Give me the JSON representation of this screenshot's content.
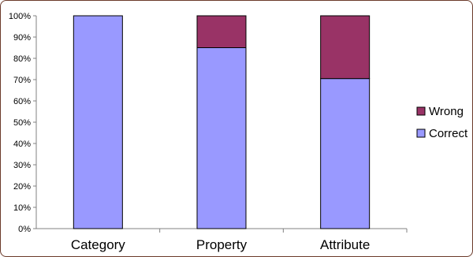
{
  "chart_data": {
    "type": "bar",
    "stacked": true,
    "percent": true,
    "categories": [
      "Category",
      "Property",
      "Attribute"
    ],
    "series": [
      {
        "name": "Correct",
        "values": [
          100,
          85,
          70.5
        ],
        "color": "#9999ff"
      },
      {
        "name": "Wrong",
        "values": [
          0,
          15,
          29.5
        ],
        "color": "#993366"
      }
    ],
    "y_ticks": [
      "0%",
      "10%",
      "20%",
      "30%",
      "40%",
      "50%",
      "60%",
      "70%",
      "80%",
      "90%",
      "100%"
    ],
    "ylim": [
      0,
      100
    ],
    "grid": false,
    "legend": {
      "position": "right",
      "entries": [
        "Wrong",
        "Correct"
      ]
    },
    "colors": {
      "correct": "#9999ff",
      "wrong": "#993366",
      "frame": "#6b3a2a"
    }
  }
}
